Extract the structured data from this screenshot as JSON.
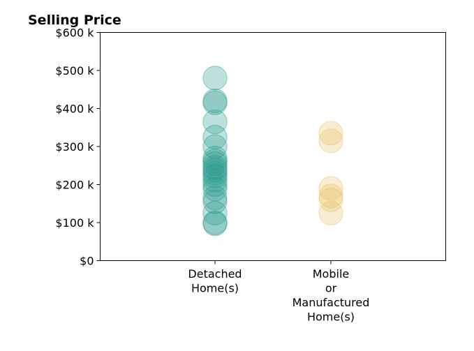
{
  "chart_data": {
    "type": "scatter",
    "title": "Selling Price",
    "xlabel": "",
    "ylabel": "",
    "categories": [
      [
        "Detached",
        "Home(s)"
      ],
      [
        "Mobile",
        "or",
        "Manufactured",
        "Home(s)"
      ]
    ],
    "ylim": [
      0,
      600000
    ],
    "y_tick_values": [
      0,
      100000,
      200000,
      300000,
      400000,
      500000,
      600000
    ],
    "y_tick_labels": [
      "$0",
      "$100 k",
      "$200 k",
      "$300 k",
      "$400 k",
      "$500 k",
      "$600 k"
    ],
    "grid": false,
    "series": [
      {
        "category_index": 0,
        "color": "#2a9d8f",
        "values": [
          480000,
          420000,
          415000,
          365000,
          325000,
          300000,
          270000,
          262000,
          255000,
          245000,
          238000,
          230000,
          222000,
          212000,
          200000,
          188000,
          165000,
          155000,
          125000,
          100000,
          97000
        ]
      },
      {
        "category_index": 1,
        "color": "#e9c46a",
        "values": [
          335000,
          315000,
          190000,
          170000,
          160000,
          125000
        ]
      }
    ]
  }
}
